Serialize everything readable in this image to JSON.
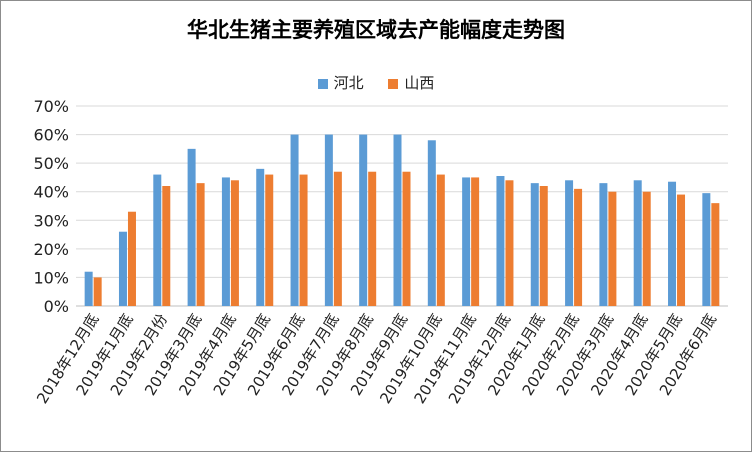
{
  "chart_data": {
    "type": "bar",
    "title": "华北生猪主要养殖区域去产能幅度走势图",
    "xlabel": "",
    "ylabel": "",
    "ylim": [
      0,
      70
    ],
    "yticks": [
      "0%",
      "10%",
      "20%",
      "30%",
      "40%",
      "50%",
      "60%",
      "70%"
    ],
    "legend_position": "top",
    "grid": true,
    "categories": [
      "2018年12月底",
      "2019年1月底",
      "2019年2月份",
      "2019年3月底",
      "2019年4月底",
      "2019年5月底",
      "2019年6月底",
      "2019年7月底",
      "2019年8月底",
      "2019年9月底",
      "2019年10月底",
      "2019年11月底",
      "2019年12月底",
      "2020年1月底",
      "2020年2月底",
      "2020年3月底",
      "2020年4月底",
      "2020年5月底",
      "2020年6月底"
    ],
    "series": [
      {
        "name": "河北",
        "color": "#5b9bd5",
        "values": [
          12,
          26,
          46,
          55,
          45,
          48,
          60,
          60,
          60,
          60,
          58,
          45,
          45.5,
          43,
          44,
          43,
          44,
          43.5,
          39.5
        ]
      },
      {
        "name": "山西",
        "color": "#ed7d31",
        "values": [
          10,
          33,
          42,
          43,
          44,
          46,
          46,
          47,
          47,
          47,
          46,
          45,
          44,
          42,
          41,
          40,
          40,
          39,
          36
        ]
      }
    ]
  }
}
